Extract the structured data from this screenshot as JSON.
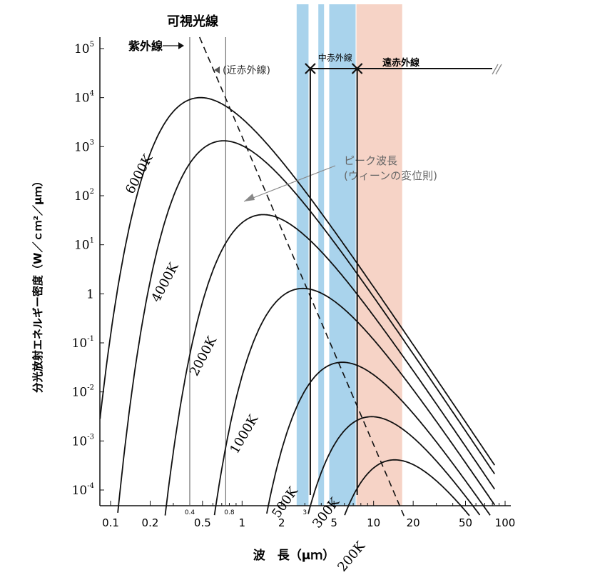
{
  "chart_data": {
    "type": "line",
    "title": "可視光線",
    "xlabel": "波　長（μｍ）",
    "ylabel": "分光放射エネルギー密度（W／ｃｍ²／μｍ）",
    "x_scale": "log",
    "y_scale": "log",
    "xlim": [
      0.085,
      100
    ],
    "ylim": [
      5e-05,
      100000
    ],
    "x_ticks": [
      {
        "value": 0.1,
        "label": "0.1"
      },
      {
        "value": 0.2,
        "label": "0.2"
      },
      {
        "value": 0.5,
        "label": "0.5"
      },
      {
        "value": 1,
        "label": "1"
      },
      {
        "value": 2,
        "label": "2"
      },
      {
        "value": 5,
        "label": "5"
      },
      {
        "value": 10,
        "label": "10"
      },
      {
        "value": 20,
        "label": "20"
      },
      {
        "value": 50,
        "label": "50"
      },
      {
        "value": 100,
        "label": "100"
      }
    ],
    "x_minor_labels": [
      {
        "value": 0.4,
        "label": "0.4"
      },
      {
        "value": 0.8,
        "label": "0.8"
      },
      {
        "value": 3,
        "label": "3"
      }
    ],
    "y_ticks": [
      {
        "value": 100000,
        "base": "10",
        "exp": "5"
      },
      {
        "value": 10000,
        "base": "10",
        "exp": "4"
      },
      {
        "value": 1000,
        "base": "10",
        "exp": "3"
      },
      {
        "value": 100,
        "base": "10",
        "exp": "2"
      },
      {
        "value": 10,
        "base": "10",
        "exp": "1"
      },
      {
        "value": 1,
        "base": "1",
        "exp": ""
      },
      {
        "value": 0.1,
        "base": "10",
        "exp": "-1"
      },
      {
        "value": 0.01,
        "base": "10",
        "exp": "-2"
      },
      {
        "value": 0.001,
        "base": "10",
        "exp": "-3"
      },
      {
        "value": 0.0001,
        "base": "10",
        "exp": "-4"
      }
    ],
    "series": [
      {
        "name": "6000K",
        "temperature": 6000
      },
      {
        "name": "4000K",
        "temperature": 4000
      },
      {
        "name": "2000K",
        "temperature": 2000
      },
      {
        "name": "1000K",
        "temperature": 1000
      },
      {
        "name": "500K",
        "temperature": 500
      },
      {
        "name": "300K",
        "temperature": 300
      },
      {
        "name": "200K",
        "temperature": 200
      }
    ],
    "peak_line": {
      "label_line1": "ピーク波長",
      "label_line2": "(ウィーンの変位則)"
    },
    "visible_lines": [
      0.4,
      0.75
    ],
    "regions": [
      {
        "label": "紫外線",
        "arrow": "←",
        "x_end": 0.4
      },
      {
        "label": "近赤外線",
        "arrow": "←",
        "x_start": 0.75
      },
      {
        "label": "中赤外線",
        "x_start": 3.3,
        "x_end": 7.5
      },
      {
        "label": "遠赤外線",
        "x_start": 7.5,
        "x_end": 90
      }
    ],
    "bands": [
      {
        "x_start": 2.6,
        "x_end": 3.2,
        "color": "#a9d3ec"
      },
      {
        "x_start": 3.8,
        "x_end": 4.2,
        "color": "#a9d3ec"
      },
      {
        "x_start": 4.6,
        "x_end": 7.3,
        "color": "#a9d3ec"
      },
      {
        "x_start": 7.4,
        "x_end": 16.5,
        "color": "#f6d3c6"
      }
    ],
    "grid": false,
    "colors": {
      "curve": "#111111",
      "band_blue": "#a9d3ec",
      "band_salmon": "#f6d3c6"
    }
  }
}
